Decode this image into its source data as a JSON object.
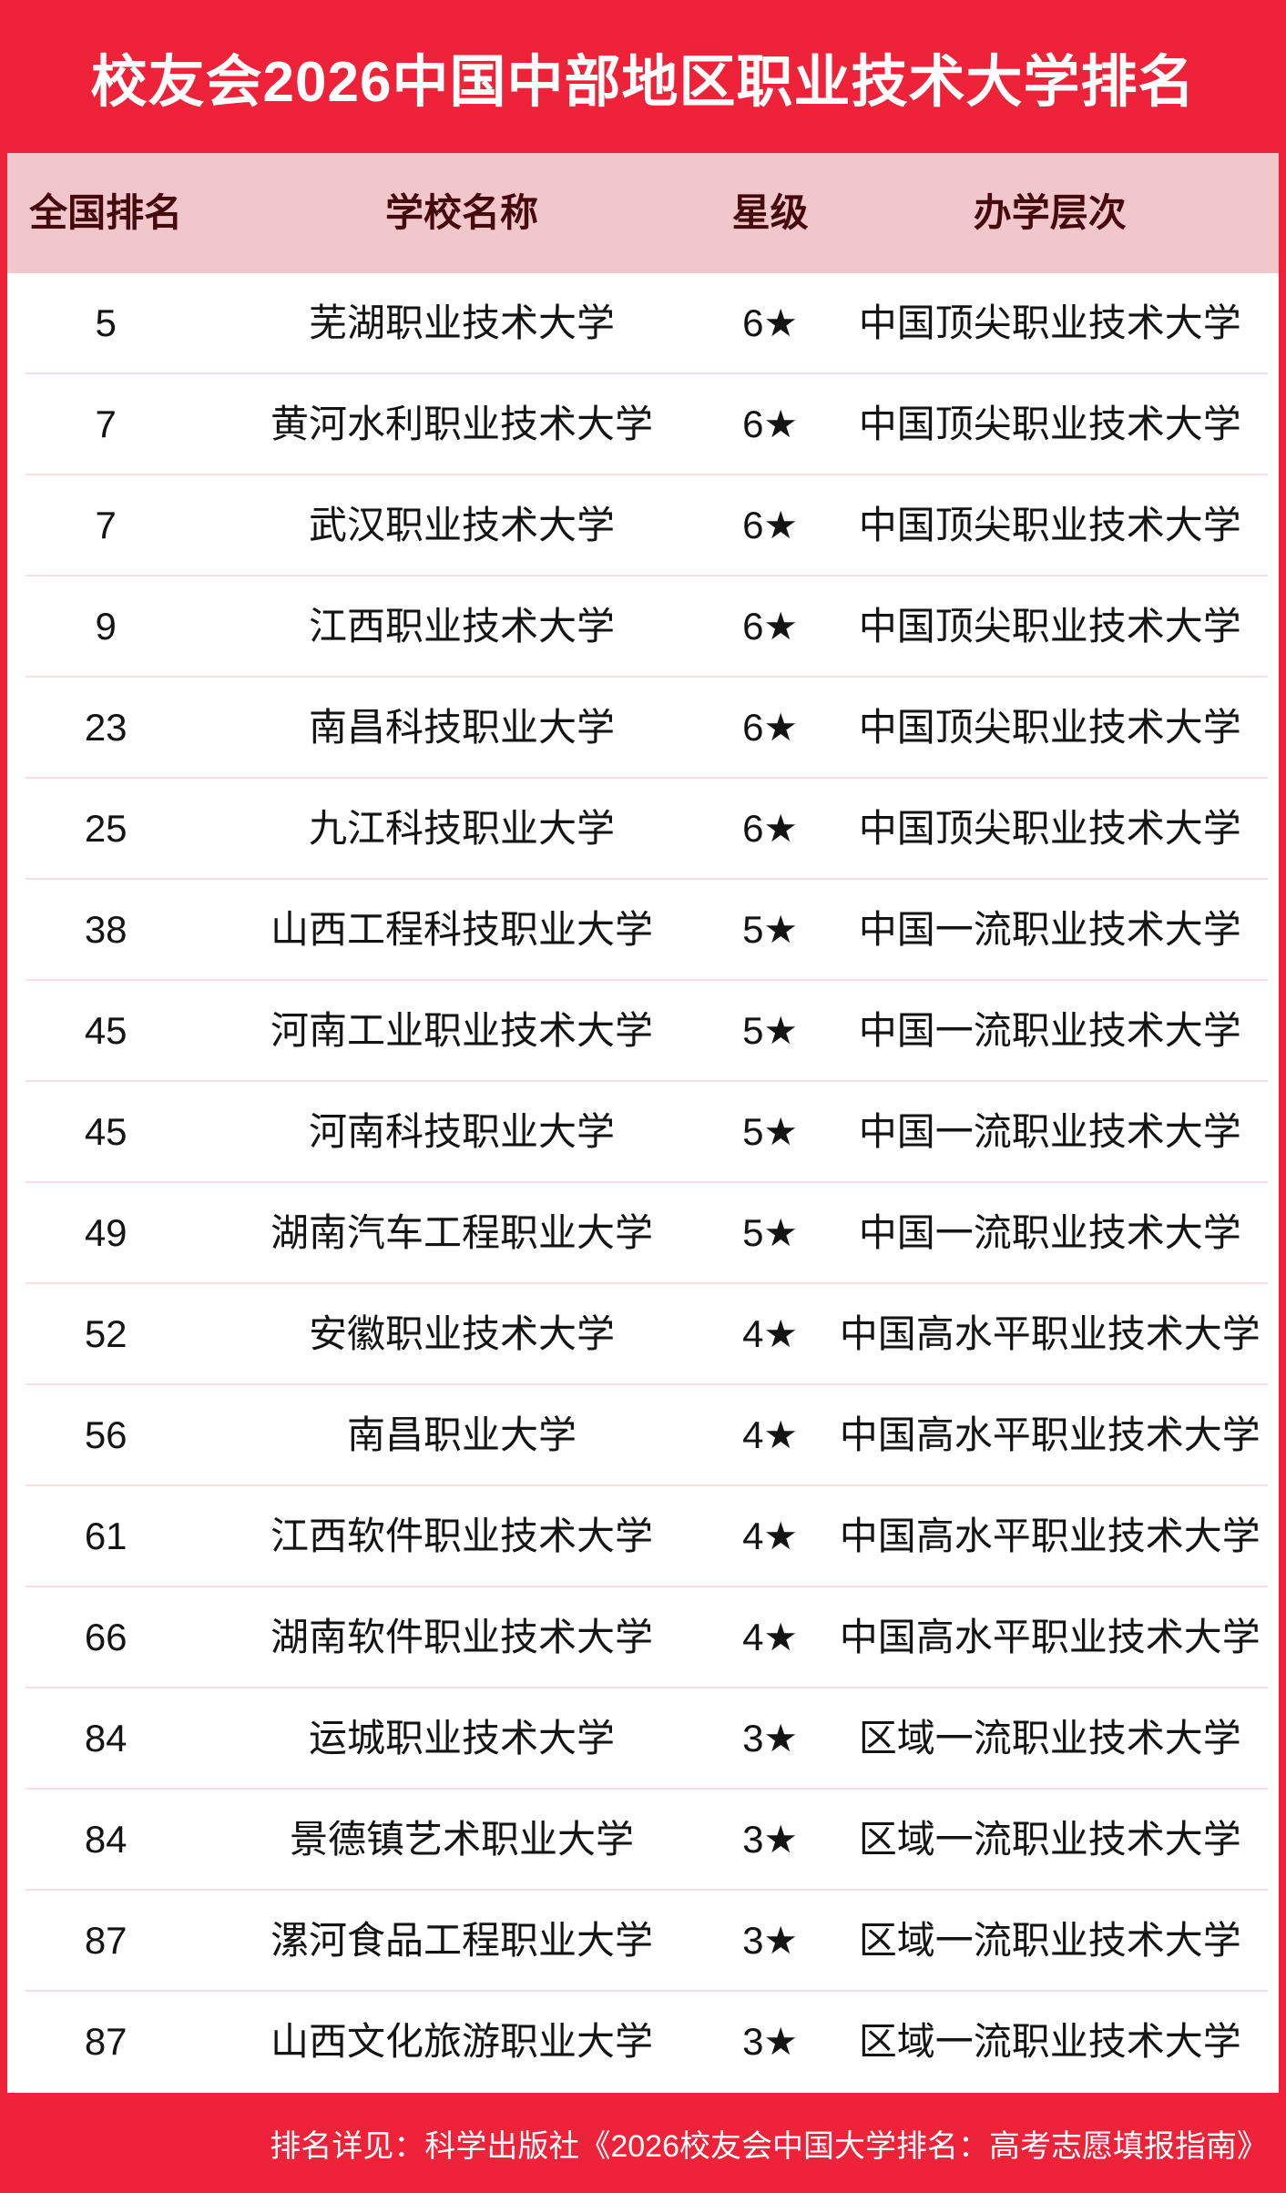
{
  "title": "校友会2026中国中部地区职业技术大学排名",
  "chart_data": {
    "type": "table",
    "title": "校友会2026中国中部地区职业技术大学排名",
    "columns": [
      "全国排名",
      "学校名称",
      "星级",
      "办学层次"
    ],
    "rows": [
      {
        "rank": "5",
        "school": "芜湖职业技术大学",
        "star": "6★",
        "level": "中国顶尖职业技术大学"
      },
      {
        "rank": "7",
        "school": "黄河水利职业技术大学",
        "star": "6★",
        "level": "中国顶尖职业技术大学"
      },
      {
        "rank": "7",
        "school": "武汉职业技术大学",
        "star": "6★",
        "level": "中国顶尖职业技术大学"
      },
      {
        "rank": "9",
        "school": "江西职业技术大学",
        "star": "6★",
        "level": "中国顶尖职业技术大学"
      },
      {
        "rank": "23",
        "school": "南昌科技职业大学",
        "star": "6★",
        "level": "中国顶尖职业技术大学"
      },
      {
        "rank": "25",
        "school": "九江科技职业大学",
        "star": "6★",
        "level": "中国顶尖职业技术大学"
      },
      {
        "rank": "38",
        "school": "山西工程科技职业大学",
        "star": "5★",
        "level": "中国一流职业技术大学"
      },
      {
        "rank": "45",
        "school": "河南工业职业技术大学",
        "star": "5★",
        "level": "中国一流职业技术大学"
      },
      {
        "rank": "45",
        "school": "河南科技职业大学",
        "star": "5★",
        "level": "中国一流职业技术大学"
      },
      {
        "rank": "49",
        "school": "湖南汽车工程职业大学",
        "star": "5★",
        "level": "中国一流职业技术大学"
      },
      {
        "rank": "52",
        "school": "安徽职业技术大学",
        "star": "4★",
        "level": "中国高水平职业技术大学"
      },
      {
        "rank": "56",
        "school": "南昌职业大学",
        "star": "4★",
        "level": "中国高水平职业技术大学"
      },
      {
        "rank": "61",
        "school": "江西软件职业技术大学",
        "star": "4★",
        "level": "中国高水平职业技术大学"
      },
      {
        "rank": "66",
        "school": "湖南软件职业技术大学",
        "star": "4★",
        "level": "中国高水平职业技术大学"
      },
      {
        "rank": "84",
        "school": "运城职业技术大学",
        "star": "3★",
        "level": "区域一流职业技术大学"
      },
      {
        "rank": "84",
        "school": "景德镇艺术职业大学",
        "star": "3★",
        "level": "区域一流职业技术大学"
      },
      {
        "rank": "87",
        "school": "漯河食品工程职业大学",
        "star": "3★",
        "level": "区域一流职业技术大学"
      },
      {
        "rank": "87",
        "school": "山西文化旅游职业大学",
        "star": "3★",
        "level": "区域一流职业技术大学"
      }
    ]
  },
  "footer": {
    "note": "排名详见：科学出版社《2026校友会中国大学排名：高考志愿填报指南》"
  },
  "colors": {
    "accent_red": "#EE2238",
    "header_bg": "#F2C7CC",
    "header_text": "#450A0E",
    "row_text": "#141414",
    "divider": "#F6DEE2",
    "title_text": "#FFFFFF",
    "footer_text": "#FFFFFF"
  }
}
